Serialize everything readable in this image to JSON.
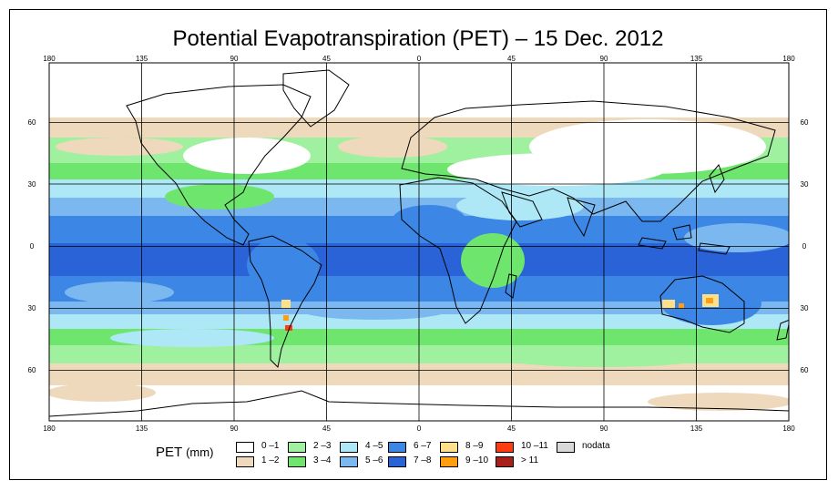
{
  "title": "Potential Evapotranspiration (PET) – 15 Dec. 2012",
  "legend": {
    "label": "PET",
    "unit": "(mm)",
    "items": [
      {
        "label": "0 –1",
        "color": "#ffffff"
      },
      {
        "label": "1 –2",
        "color": "#eed9bd"
      },
      {
        "label": "2 –3",
        "color": "#9ff09f"
      },
      {
        "label": "3 –4",
        "color": "#6ee66e"
      },
      {
        "label": "4 –5",
        "color": "#aee8f6"
      },
      {
        "label": "5 –6",
        "color": "#7cb8f0"
      },
      {
        "label": "6 –7",
        "color": "#3c86e6"
      },
      {
        "label": "7 –8",
        "color": "#2a62d8"
      },
      {
        "label": "8 –9",
        "color": "#ffe08a"
      },
      {
        "label": "9 –10",
        "color": "#ff9e10"
      },
      {
        "label": "10 –11",
        "color": "#ff3c10"
      },
      {
        "label": "> 11",
        "color": "#a8201a"
      },
      {
        "label": "nodata",
        "color": "#d8d8d8"
      }
    ]
  },
  "axes": {
    "lon_labels": [
      "180",
      "135",
      "90",
      "45",
      "0",
      "45",
      "90",
      "135",
      "180"
    ],
    "lat_labels": [
      "60",
      "30",
      "0",
      "30",
      "60"
    ]
  }
}
